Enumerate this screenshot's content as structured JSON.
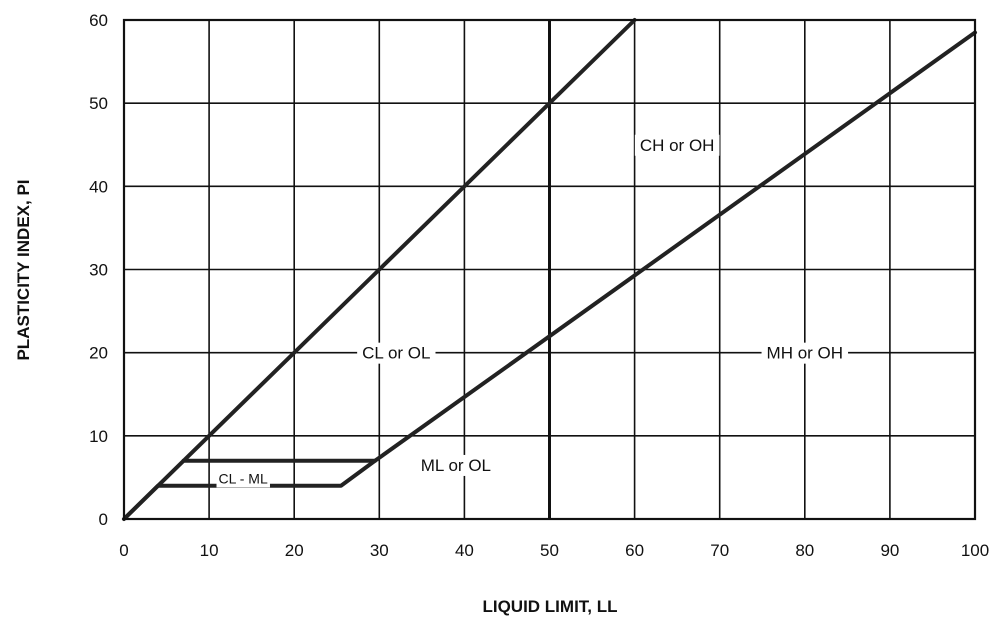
{
  "chart_data": {
    "type": "line",
    "xlabel": "LIQUID LIMIT, LL",
    "ylabel": "PLASTICITY INDEX, PI",
    "xlim": [
      0,
      100
    ],
    "ylim": [
      0,
      60
    ],
    "x_ticks": [
      0,
      10,
      20,
      30,
      40,
      50,
      60,
      70,
      80,
      90,
      100
    ],
    "y_ticks": [
      0,
      10,
      20,
      30,
      40,
      50,
      60
    ],
    "grid": true,
    "emphasized_vertical_at": 50,
    "series": [
      {
        "points": [
          [
            0,
            0
          ],
          [
            60,
            60
          ]
        ]
      },
      {
        "points": [
          [
            0,
            0
          ],
          [
            4,
            4
          ],
          [
            25.5,
            4
          ],
          [
            29.5,
            7
          ],
          [
            100,
            58.5
          ]
        ]
      },
      {
        "points": [
          [
            7,
            7
          ],
          [
            29.5,
            7
          ]
        ]
      }
    ],
    "regions": [
      {
        "label": "CH or OH",
        "x": 65,
        "y": 45
      },
      {
        "label": "CL or OL",
        "x": 32,
        "y": 20
      },
      {
        "label": "MH or OH",
        "x": 80,
        "y": 20
      },
      {
        "label": "ML or OL",
        "x": 39,
        "y": 6.5
      },
      {
        "label": "CL - ML",
        "x": 14,
        "y": 5
      }
    ],
    "colors": {
      "line": "#222222",
      "grid": "#111111",
      "background": "#ffffff"
    }
  }
}
